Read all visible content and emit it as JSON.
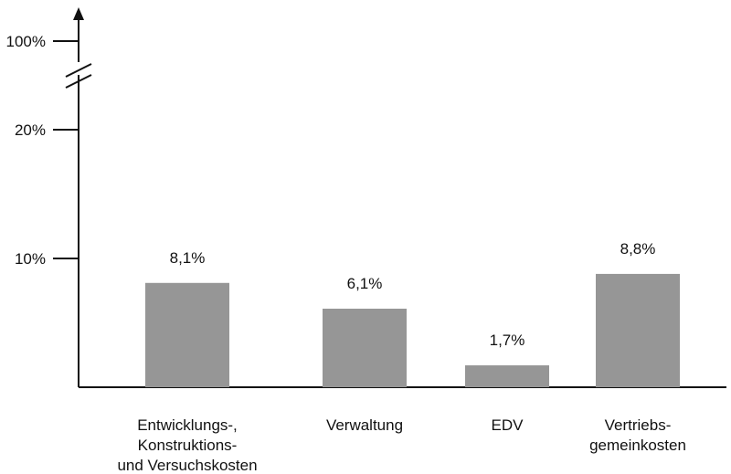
{
  "chart_data": {
    "type": "bar",
    "categories": [
      [
        "Entwicklungs-,",
        "Konstruktions-",
        "und Versuchskosten"
      ],
      [
        "Verwaltung"
      ],
      [
        "EDV"
      ],
      [
        "Vertriebs-",
        "gemeinkosten"
      ]
    ],
    "values": [
      8.1,
      6.1,
      1.7,
      8.8
    ],
    "value_labels": [
      "8,1%",
      "6,1%",
      "1,7%",
      "8,8%"
    ],
    "y_ticks": [
      {
        "value": 10,
        "label": "10%"
      },
      {
        "value": 20,
        "label": "20%"
      },
      {
        "value": 100,
        "label": "100%"
      }
    ],
    "ylim": [
      0,
      100
    ],
    "axis_break": {
      "between": [
        20,
        100
      ]
    },
    "grid": false,
    "legend": "none",
    "bar_color": "#969696",
    "axis_color": "#111111"
  }
}
